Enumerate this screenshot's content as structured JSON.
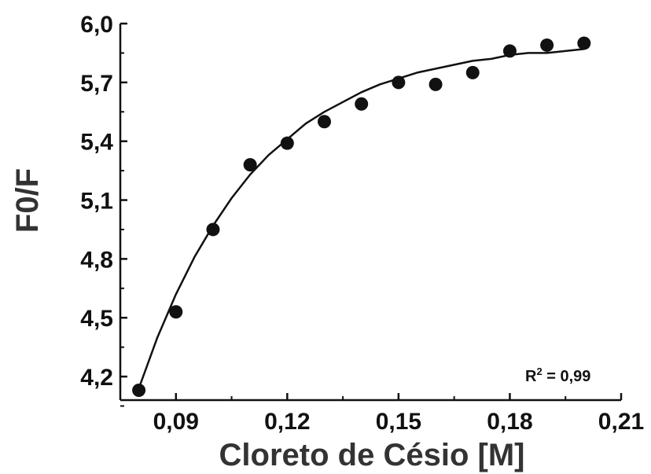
{
  "chart_data": {
    "type": "scatter",
    "title": "",
    "xlabel": "Cloreto de Césio [M]",
    "ylabel": "F0/F",
    "xlim": [
      0.075,
      0.21
    ],
    "ylim": [
      4.08,
      6.0
    ],
    "x_ticks": [
      0.09,
      0.12,
      0.15,
      0.18,
      0.21
    ],
    "x_tick_labels": [
      "0,09",
      "0,12",
      "0,15",
      "0,18",
      "0,21"
    ],
    "y_ticks": [
      4.2,
      4.5,
      4.8,
      5.1,
      5.4,
      5.7,
      6.0
    ],
    "y_tick_labels": [
      "4,2",
      "4,5",
      "4,8",
      "5,1",
      "5,4",
      "5,7",
      "6,0"
    ],
    "grid": false,
    "series": [
      {
        "x": [
          0.08,
          0.09,
          0.1,
          0.11,
          0.12,
          0.13,
          0.14,
          0.15,
          0.16,
          0.17,
          0.18,
          0.19,
          0.2
        ],
        "y": [
          4.13,
          4.53,
          4.95,
          5.28,
          5.39,
          5.5,
          5.59,
          5.7,
          5.69,
          5.75,
          5.86,
          5.89,
          5.9
        ]
      }
    ],
    "fit_curve": {
      "type": "exponential",
      "x": [
        0.08,
        0.085,
        0.09,
        0.095,
        0.1,
        0.105,
        0.11,
        0.115,
        0.12,
        0.125,
        0.13,
        0.135,
        0.14,
        0.145,
        0.15,
        0.155,
        0.16,
        0.165,
        0.17,
        0.175,
        0.18,
        0.185,
        0.19,
        0.195,
        0.2
      ],
      "y": [
        4.14,
        4.4,
        4.62,
        4.81,
        4.97,
        5.11,
        5.23,
        5.33,
        5.41,
        5.49,
        5.55,
        5.6,
        5.65,
        5.69,
        5.72,
        5.75,
        5.77,
        5.79,
        5.81,
        5.82,
        5.84,
        5.85,
        5.85,
        5.86,
        5.87
      ]
    },
    "annotation": {
      "r_label": "R",
      "r_superscript": "2",
      "r_value": " = 0,99"
    }
  }
}
